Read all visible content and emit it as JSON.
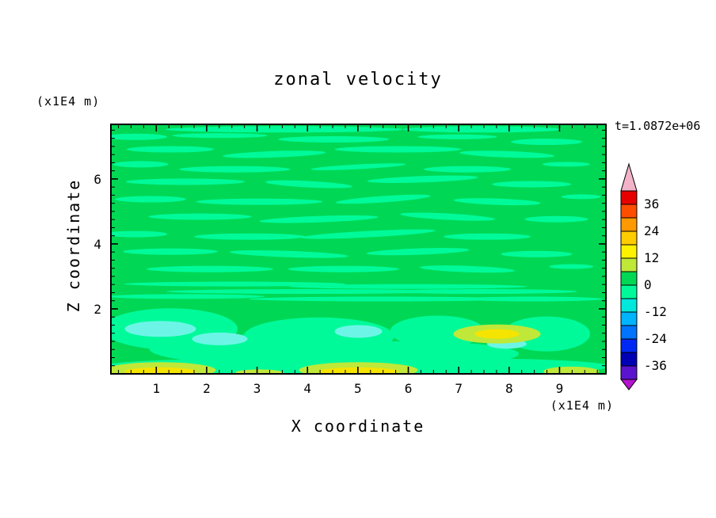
{
  "chart_data": {
    "type": "filled_contour",
    "title": "zonal velocity",
    "time_label": "t=1.0872e+06",
    "x_axis": {
      "label": "X coordinate",
      "unit": "(x1E4 m)",
      "min": 0.1,
      "max": 9.92,
      "major_ticks": [
        1,
        2,
        3,
        4,
        5,
        6,
        7,
        8,
        9
      ],
      "minor_step": 0.25
    },
    "z_axis": {
      "label": "Z coordinate",
      "unit": "(x1E4 m)",
      "min": 0,
      "max": 7.68,
      "major_ticks": [
        2,
        4,
        6
      ],
      "minor_step": 0.25
    },
    "contour_interval": 6,
    "colorbar": {
      "labels": [
        36,
        24,
        12,
        0,
        -12,
        -24,
        -36
      ],
      "cell_upper_bounds": [
        42,
        36,
        30,
        24,
        18,
        12,
        6,
        0,
        -6,
        -12,
        -18,
        -24,
        -30,
        -36
      ],
      "cell_colors": [
        "#e60000",
        "#ff4d00",
        "#ff9900",
        "#ffcc00",
        "#fff200",
        "#bfe839",
        "#00d855",
        "#00fa9a",
        "#00e8dc",
        "#00b4ff",
        "#0073ff",
        "#0028f5",
        "#0000b4",
        "#5a14cd"
      ],
      "above_range_color": "#f2b3c9",
      "below_range_color": "#b414cd"
    },
    "field_summary": "Zonal velocity field mostly between -6 and +6 (green with spring-green streaks); thin horizontal striations in upper layer, smoother broad anomalies below z=2 with weak cyan minima and yellow maxima (12-18) near the bottom boundary.",
    "palette": {
      "background": "#00d855",
      "spring": "#00fa9a",
      "cyan": "#6cf5e6",
      "yellow": "#f5e400",
      "yellow_green": "#bfe839"
    },
    "features": [
      [
        0.35,
        0.02,
        150,
        4,
        0,
        "s"
      ],
      [
        0.75,
        0.02,
        100,
        4,
        0,
        "s"
      ],
      [
        0.05,
        0.05,
        40,
        4,
        0,
        "s"
      ],
      [
        0.22,
        0.045,
        60,
        3,
        0,
        "s"
      ],
      [
        0.45,
        0.06,
        70,
        4,
        0,
        "s"
      ],
      [
        0.7,
        0.05,
        50,
        3,
        0,
        "s"
      ],
      [
        0.88,
        0.07,
        45,
        4,
        0,
        "s"
      ],
      [
        0.12,
        0.1,
        55,
        4,
        0,
        "s"
      ],
      [
        0.33,
        0.12,
        65,
        4,
        -2,
        "s"
      ],
      [
        0.58,
        0.1,
        80,
        4,
        0,
        "s"
      ],
      [
        0.8,
        0.12,
        60,
        4,
        2,
        "s"
      ],
      [
        0.06,
        0.16,
        35,
        4,
        0,
        "s"
      ],
      [
        0.25,
        0.18,
        70,
        4,
        0,
        "s"
      ],
      [
        0.5,
        0.17,
        60,
        3,
        -3,
        "s"
      ],
      [
        0.72,
        0.18,
        55,
        4,
        0,
        "s"
      ],
      [
        0.92,
        0.16,
        30,
        3,
        0,
        "s"
      ],
      [
        0.15,
        0.23,
        75,
        4,
        0,
        "s"
      ],
      [
        0.4,
        0.24,
        55,
        4,
        3,
        "s"
      ],
      [
        0.63,
        0.22,
        70,
        4,
        -2,
        "s"
      ],
      [
        0.85,
        0.24,
        50,
        4,
        0,
        "s"
      ],
      [
        0.08,
        0.3,
        45,
        4,
        0,
        "s"
      ],
      [
        0.3,
        0.31,
        80,
        4,
        0,
        "s"
      ],
      [
        0.55,
        0.3,
        60,
        4,
        -4,
        "s"
      ],
      [
        0.78,
        0.31,
        55,
        4,
        2,
        "s"
      ],
      [
        0.95,
        0.29,
        25,
        3,
        0,
        "s"
      ],
      [
        0.18,
        0.37,
        65,
        4,
        0,
        "s"
      ],
      [
        0.42,
        0.38,
        75,
        4,
        -2,
        "s"
      ],
      [
        0.68,
        0.37,
        60,
        4,
        3,
        "s"
      ],
      [
        0.9,
        0.38,
        40,
        4,
        0,
        "s"
      ],
      [
        0.05,
        0.44,
        40,
        4,
        0,
        "s"
      ],
      [
        0.28,
        0.45,
        70,
        4,
        0,
        "s"
      ],
      [
        0.52,
        0.44,
        85,
        4,
        -3,
        "s"
      ],
      [
        0.76,
        0.45,
        55,
        4,
        0,
        "s"
      ],
      [
        0.12,
        0.51,
        60,
        4,
        0,
        "s"
      ],
      [
        0.36,
        0.52,
        75,
        4,
        2,
        "s"
      ],
      [
        0.62,
        0.51,
        65,
        4,
        -2,
        "s"
      ],
      [
        0.86,
        0.52,
        45,
        4,
        0,
        "s"
      ],
      [
        0.2,
        0.58,
        80,
        4,
        0,
        "s"
      ],
      [
        0.47,
        0.58,
        70,
        4,
        0,
        "s"
      ],
      [
        0.72,
        0.58,
        60,
        4,
        2,
        "s"
      ],
      [
        0.93,
        0.57,
        28,
        3,
        0,
        "s"
      ],
      [
        0.25,
        0.64,
        140,
        3,
        0,
        "s"
      ],
      [
        0.6,
        0.65,
        150,
        3,
        0,
        "s"
      ],
      [
        0.4,
        0.67,
        180,
        3,
        0,
        "s"
      ],
      [
        0.75,
        0.67,
        120,
        3,
        0,
        "s"
      ],
      [
        0.15,
        0.69,
        100,
        3,
        0,
        "s"
      ],
      [
        0.55,
        0.7,
        170,
        3,
        0,
        "s"
      ],
      [
        0.85,
        0.7,
        90,
        3,
        0,
        "s"
      ],
      [
        0.12,
        0.82,
        85,
        26,
        0,
        "s"
      ],
      [
        0.42,
        0.85,
        95,
        24,
        0,
        "s"
      ],
      [
        0.66,
        0.83,
        60,
        20,
        0,
        "s"
      ],
      [
        0.88,
        0.84,
        55,
        22,
        0,
        "s"
      ],
      [
        0.27,
        0.9,
        120,
        18,
        0,
        "s"
      ],
      [
        0.6,
        0.92,
        140,
        16,
        0,
        "s"
      ],
      [
        0.3,
        0.97,
        200,
        10,
        0,
        "s"
      ],
      [
        0.72,
        0.97,
        180,
        10,
        0,
        "s"
      ],
      [
        0.1,
        0.82,
        45,
        10,
        0,
        "c"
      ],
      [
        0.22,
        0.86,
        35,
        8,
        0,
        "c"
      ],
      [
        0.5,
        0.83,
        30,
        8,
        0,
        "c"
      ],
      [
        0.8,
        0.88,
        25,
        6,
        0,
        "c"
      ],
      [
        0.1,
        0.985,
        70,
        10,
        0,
        "yg"
      ],
      [
        0.1,
        0.99,
        45,
        5,
        0,
        "y"
      ],
      [
        0.5,
        0.985,
        75,
        10,
        0,
        "yg"
      ],
      [
        0.5,
        0.99,
        50,
        5,
        0,
        "y"
      ],
      [
        0.78,
        0.84,
        55,
        12,
        0,
        "yg"
      ],
      [
        0.78,
        0.84,
        28,
        6,
        0,
        "y"
      ],
      [
        0.3,
        0.995,
        30,
        4,
        0,
        "yg"
      ],
      [
        0.93,
        0.99,
        35,
        6,
        0,
        "yg"
      ]
    ]
  }
}
